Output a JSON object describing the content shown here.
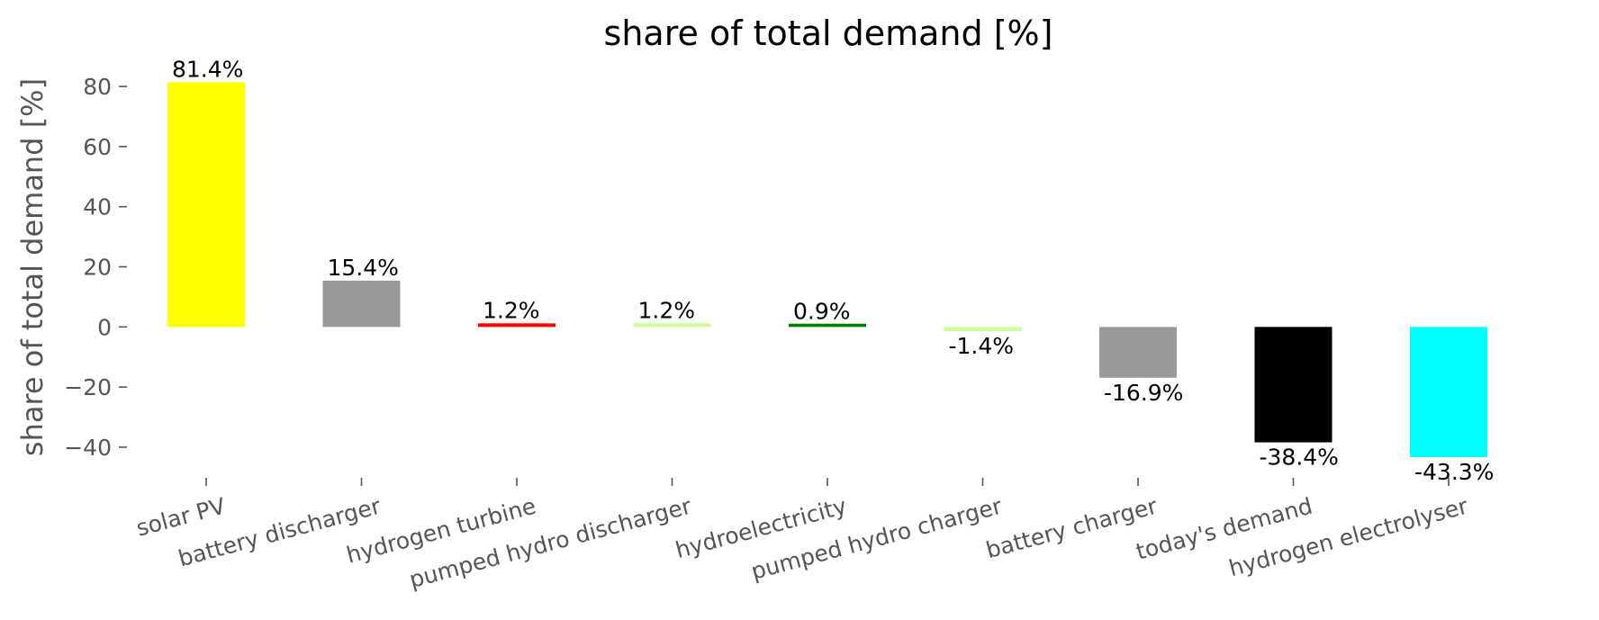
{
  "chart_data": {
    "type": "bar",
    "title": "share of total demand [%]",
    "xlabel": "",
    "ylabel": "share of total demand [%]",
    "ylim": [
      -49,
      92
    ],
    "yticks": [
      -40,
      -20,
      0,
      20,
      40,
      60,
      80
    ],
    "grid": false,
    "categories": [
      "solar PV",
      "battery discharger",
      "hydrogen turbine",
      "pumped hydro discharger",
      "hydroelectricity",
      "pumped hydro charger",
      "battery charger",
      "today's demand",
      "hydrogen electrolyser"
    ],
    "values": [
      81.4,
      15.4,
      1.2,
      1.2,
      0.9,
      -1.4,
      -16.9,
      -38.4,
      -43.3
    ],
    "labels": [
      "81.4%",
      "15.4%",
      "1.2%",
      "1.2%",
      "0.9%",
      "-1.4%",
      "-16.9%",
      "-38.4%",
      "-43.3%"
    ],
    "colors": [
      "#ffff00",
      "#999999",
      "#ff0000",
      "#ccff99",
      "#008000",
      "#ccff99",
      "#999999",
      "#000000",
      "#00ffff"
    ]
  }
}
